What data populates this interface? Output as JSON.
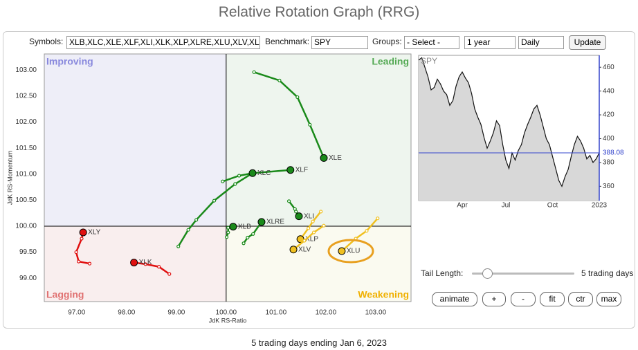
{
  "header": {
    "title": "Relative Rotation Graph (RRG)"
  },
  "controls": {
    "symbols_label": "Symbols:",
    "symbols": "XLB,XLC,XLE,XLF,XLI,XLK,XLP,XLRE,XLU,XLV,XL",
    "benchmark_label": "Benchmark:",
    "benchmark": "SPY",
    "groups_label": "Groups:",
    "groups": "- Select -",
    "period": "1 year",
    "frequency": "Daily",
    "update": "Update",
    "tail_label": "Tail Length:",
    "tail_value": "5 trading days",
    "buttons": [
      "animate",
      "+",
      "-",
      "fit",
      "ctr",
      "max"
    ]
  },
  "footer": "5 trading days ending Jan 6, 2023",
  "chart_data": [
    {
      "type": "rrg",
      "x_label": "JdK RS-Ratio",
      "y_label": "JdK RS-Momentum",
      "xlim": [
        96.35,
        103.71
      ],
      "ylim": [
        98.55,
        103.31
      ],
      "center": 100,
      "xticks": [
        {
          "value": 97,
          "label": "97.00"
        },
        {
          "value": 98,
          "label": "98.00"
        },
        {
          "value": 99,
          "label": "99.00"
        },
        {
          "value": 100,
          "label": "100.00"
        },
        {
          "value": 101,
          "label": "101.00"
        },
        {
          "value": 102,
          "label": "102.00"
        },
        {
          "value": 103,
          "label": "103.00"
        }
      ],
      "yticks": [
        {
          "value": 99,
          "label": "99.00"
        },
        {
          "value": 99.5,
          "label": "99.50"
        },
        {
          "value": 100,
          "label": "100.00"
        },
        {
          "value": 100.5,
          "label": "100.50"
        },
        {
          "value": 101,
          "label": "101.00"
        },
        {
          "value": 101.5,
          "label": "101.50"
        },
        {
          "value": 102,
          "label": "102.00"
        },
        {
          "value": 102.5,
          "label": "102.50"
        },
        {
          "value": 103,
          "label": "103.00"
        }
      ],
      "quadrants": {
        "top_left": "Improving",
        "top_right": "Leading",
        "bottom_left": "Lagging",
        "bottom_right": "Weakening"
      },
      "series": [
        {
          "name": "XLE",
          "color": "#1a8a1a",
          "x": [
            100.56,
            101.07,
            101.43,
            101.68,
            101.96
          ],
          "y": [
            102.96,
            102.8,
            102.48,
            101.95,
            101.31
          ]
        },
        {
          "name": "XLF",
          "color": "#1a8a1a",
          "x": [
            99.93,
            100.26,
            100.54,
            101.29
          ],
          "y": [
            100.86,
            100.97,
            101.02,
            101.08
          ]
        },
        {
          "name": "XLC",
          "color": "#1a8a1a",
          "x": [
            99.04,
            99.24,
            99.4,
            99.76,
            100.18,
            100.53
          ],
          "y": [
            99.61,
            99.93,
            100.12,
            100.49,
            100.81,
            101.02
          ]
        },
        {
          "name": "XLI",
          "color": "#1a8a1a",
          "x": [
            101.26,
            101.38,
            101.4,
            101.46
          ],
          "y": [
            100.48,
            100.33,
            100.28,
            100.19
          ]
        },
        {
          "name": "XLRE",
          "color": "#1a8a1a",
          "x": [
            100.35,
            100.43,
            100.54,
            100.71
          ],
          "y": [
            99.67,
            99.78,
            99.85,
            100.08
          ]
        },
        {
          "name": "XLB",
          "color": "#1a8a1a",
          "x": [
            100.01,
            100.04,
            100.04,
            100.14
          ],
          "y": [
            99.79,
            99.88,
            99.97,
            99.99
          ]
        },
        {
          "name": "XLP",
          "color": "#f0c020",
          "x": [
            101.9,
            101.74,
            101.65,
            101.49
          ],
          "y": [
            100.28,
            100.09,
            99.96,
            99.75
          ]
        },
        {
          "name": "XLV",
          "color": "#f0c020",
          "x": [
            101.96,
            101.76,
            101.57,
            101.35
          ],
          "y": [
            100.01,
            99.88,
            99.72,
            99.55
          ]
        },
        {
          "name": "XLU",
          "color": "#f0c020",
          "x": [
            103.04,
            102.82,
            102.6,
            102.32
          ],
          "y": [
            100.15,
            99.91,
            99.76,
            99.52
          ]
        },
        {
          "name": "XLY",
          "color": "#e01010",
          "x": [
            97.26,
            97.04,
            96.99,
            97.1,
            97.13
          ],
          "y": [
            99.28,
            99.32,
            99.5,
            99.76,
            99.88
          ]
        },
        {
          "name": "XLK",
          "color": "#e01010",
          "x": [
            98.86,
            98.65,
            98.38,
            98.15
          ],
          "y": [
            99.08,
            99.22,
            99.27,
            99.3
          ]
        }
      ]
    },
    {
      "type": "line",
      "title": "SPY",
      "color": "#111111",
      "fill": "#d8d8d8",
      "values": [
        466,
        468,
        460,
        452,
        441,
        443,
        450,
        446,
        440,
        437,
        428,
        432,
        444,
        452,
        456,
        451,
        447,
        438,
        425,
        418,
        412,
        401,
        392,
        398,
        405,
        415,
        411,
        395,
        382,
        375,
        388,
        382,
        390,
        395,
        405,
        412,
        418,
        425,
        428,
        420,
        410,
        400,
        395,
        385,
        375,
        365,
        360,
        368,
        374,
        385,
        395,
        402,
        398,
        392,
        383,
        386,
        380,
        383,
        388.08
      ],
      "last_value": 388.08,
      "xlim": [
        0,
        58
      ],
      "xticks": [
        {
          "value": 14,
          "label": "Apr"
        },
        {
          "value": 28,
          "label": "Jul"
        },
        {
          "value": 43,
          "label": "Oct"
        },
        {
          "value": 58,
          "label": "2023"
        }
      ],
      "ylim": [
        348,
        470
      ],
      "yticks": [
        360,
        380,
        400,
        420,
        440,
        460
      ]
    }
  ]
}
